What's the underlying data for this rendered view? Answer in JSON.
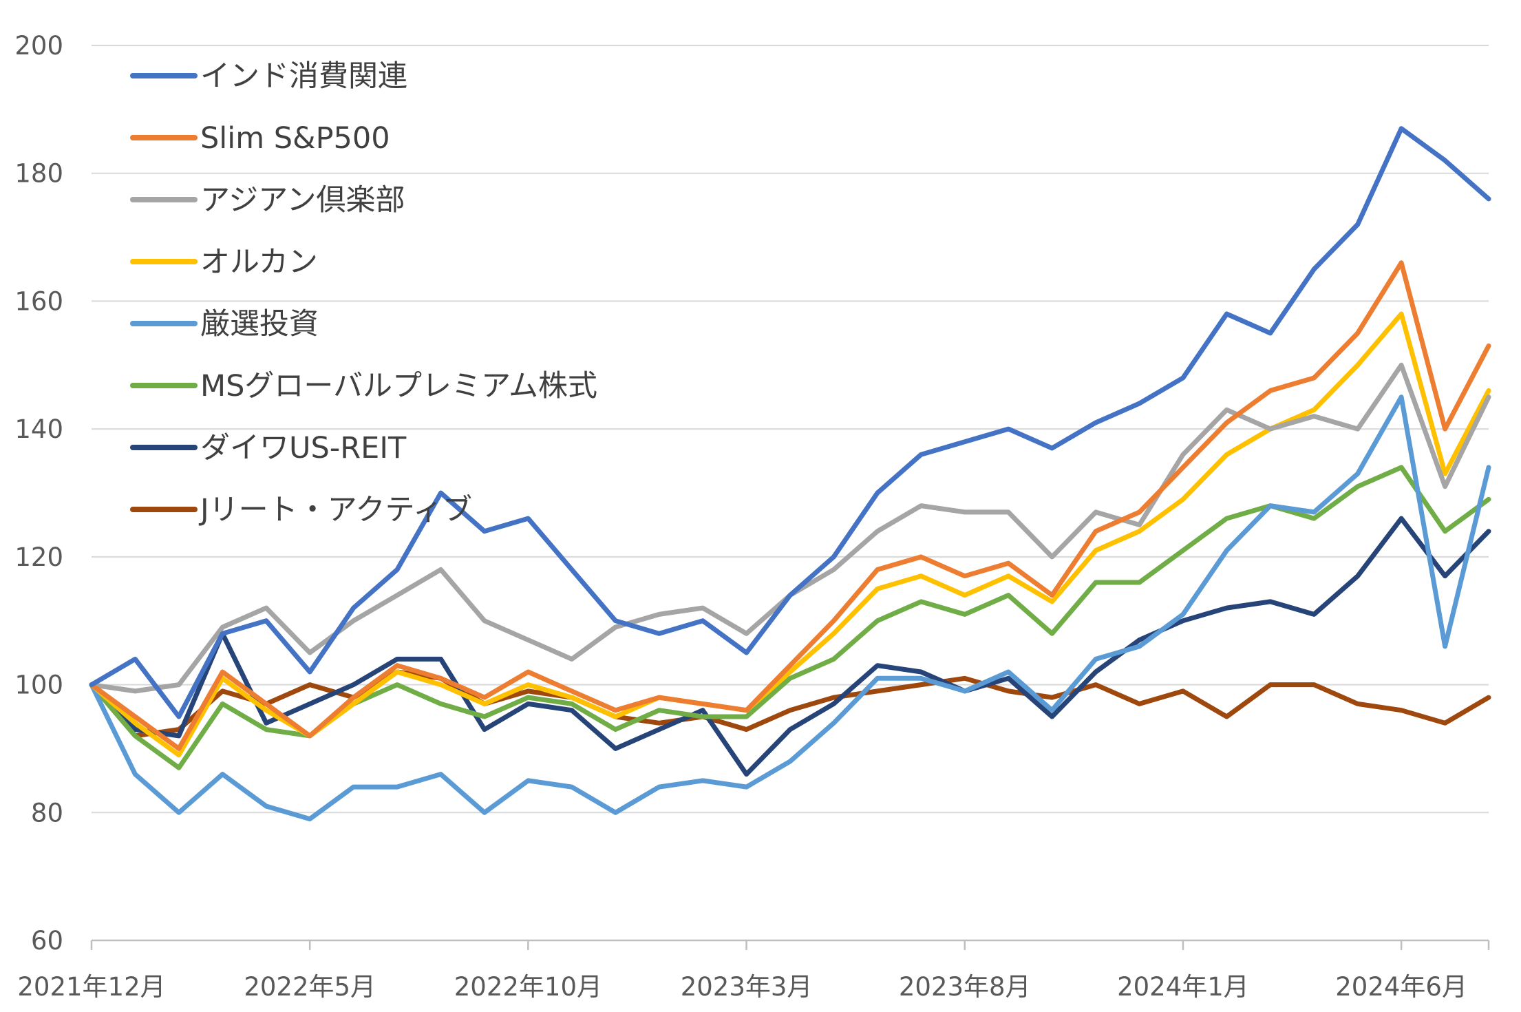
{
  "chart_data": {
    "type": "line",
    "title": "",
    "xlabel": "",
    "ylabel": "",
    "ylim": [
      60,
      200
    ],
    "yticks": [
      60,
      80,
      100,
      120,
      140,
      160,
      180,
      200
    ],
    "grid": "horizontal",
    "legend_position": "top-left",
    "x_tick_labels": [
      "2021年12月",
      "2022年5月",
      "2022年10月",
      "2023年3月",
      "2023年8月",
      "2024年1月",
      "2024年6月"
    ],
    "x": [
      "2021-12",
      "2022-01",
      "2022-02",
      "2022-03",
      "2022-04",
      "2022-05",
      "2022-06",
      "2022-07",
      "2022-08",
      "2022-09",
      "2022-10",
      "2022-11",
      "2022-12",
      "2023-01",
      "2023-02",
      "2023-03",
      "2023-04",
      "2023-05",
      "2023-06",
      "2023-07",
      "2023-08",
      "2023-09",
      "2023-10",
      "2023-11",
      "2023-12",
      "2024-01",
      "2024-02",
      "2024-03",
      "2024-04",
      "2024-05",
      "2024-06",
      "2024-07",
      "2024-08"
    ],
    "series": [
      {
        "name": "インド消費関連",
        "color": "#4472c4",
        "values": [
          100,
          104,
          95,
          108,
          110,
          102,
          112,
          118,
          130,
          124,
          126,
          118,
          110,
          108,
          110,
          105,
          114,
          120,
          130,
          136,
          138,
          140,
          137,
          141,
          144,
          148,
          158,
          155,
          165,
          172,
          187,
          182,
          176
        ]
      },
      {
        "name": "Slim S&P500",
        "color": "#ed7d31",
        "values": [
          100,
          95,
          90,
          102,
          97,
          92,
          98,
          103,
          101,
          98,
          102,
          99,
          96,
          98,
          97,
          96,
          103,
          110,
          118,
          120,
          117,
          119,
          114,
          124,
          127,
          134,
          141,
          146,
          148,
          155,
          166,
          140,
          153
        ]
      },
      {
        "name": "アジアン倶楽部",
        "color": "#a5a5a5",
        "values": [
          100,
          99,
          100,
          109,
          112,
          105,
          110,
          114,
          118,
          110,
          107,
          104,
          109,
          111,
          112,
          108,
          114,
          118,
          124,
          128,
          127,
          127,
          120,
          127,
          125,
          136,
          143,
          140,
          142,
          140,
          150,
          131,
          145
        ]
      },
      {
        "name": "オルカン",
        "color": "#ffc000",
        "values": [
          100,
          94,
          89,
          101,
          96,
          92,
          97,
          102,
          100,
          97,
          100,
          98,
          95,
          98,
          97,
          96,
          102,
          108,
          115,
          117,
          114,
          117,
          113,
          121,
          124,
          129,
          136,
          140,
          143,
          150,
          158,
          133,
          146
        ]
      },
      {
        "name": "厳選投資",
        "color": "#5b9bd5",
        "values": [
          100,
          86,
          80,
          86,
          81,
          79,
          84,
          84,
          86,
          80,
          85,
          84,
          80,
          84,
          85,
          84,
          88,
          94,
          101,
          101,
          99,
          102,
          96,
          104,
          106,
          111,
          121,
          128,
          127,
          133,
          145,
          106,
          134
        ]
      },
      {
        "name": "MSグローバルプレミアム株式",
        "color": "#70ad47",
        "values": [
          100,
          92,
          87,
          97,
          93,
          92,
          97,
          100,
          97,
          95,
          98,
          97,
          93,
          96,
          95,
          95,
          101,
          104,
          110,
          113,
          111,
          114,
          108,
          116,
          116,
          121,
          126,
          128,
          126,
          131,
          134,
          124,
          129
        ]
      },
      {
        "name": "ダイワUS-REIT",
        "color": "#264478",
        "values": [
          100,
          93,
          92,
          108,
          94,
          97,
          100,
          104,
          104,
          93,
          97,
          96,
          90,
          93,
          96,
          86,
          93,
          97,
          103,
          102,
          99,
          101,
          95,
          102,
          107,
          110,
          112,
          113,
          111,
          117,
          126,
          117,
          124
        ]
      },
      {
        "name": "Jリート・アクティブ",
        "color": "#9e480e",
        "values": [
          100,
          92,
          93,
          99,
          97,
          100,
          98,
          102,
          101,
          97,
          99,
          98,
          95,
          94,
          95,
          93,
          96,
          98,
          99,
          100,
          101,
          99,
          98,
          100,
          97,
          99,
          95,
          100,
          100,
          97,
          96,
          94,
          98
        ]
      }
    ]
  }
}
